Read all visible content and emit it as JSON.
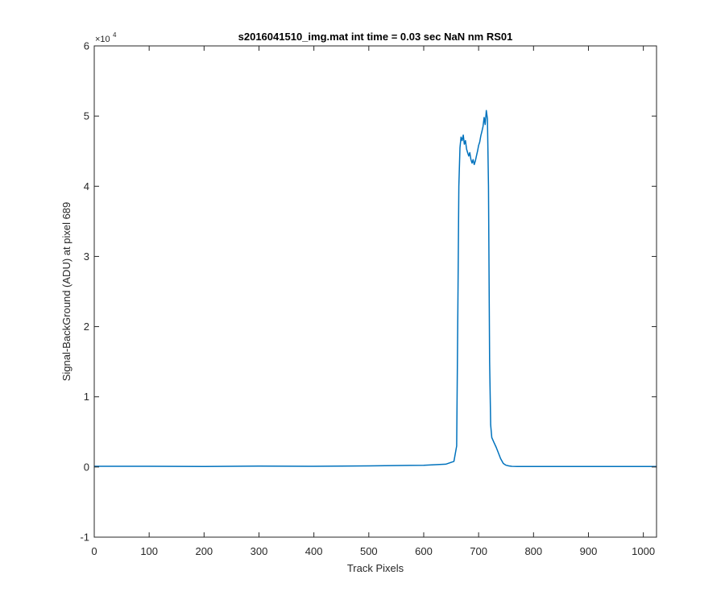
{
  "chart_data": {
    "type": "line",
    "title": "s2016041510_img.mat int time = 0.03 sec  NaN nm RS01",
    "xlabel": "Track Pixels",
    "ylabel": "Signal-BackGround (ADU) at pixel 689",
    "y_exponent_base": "×10",
    "y_exponent_power": "4",
    "xlim": [
      0,
      1024
    ],
    "ylim": [
      -10000,
      60000
    ],
    "x_ticks": [
      "0",
      "100",
      "200",
      "300",
      "400",
      "500",
      "600",
      "700",
      "800",
      "900",
      "1000"
    ],
    "y_ticks": [
      "-1",
      "0",
      "1",
      "2",
      "3",
      "4",
      "5",
      "6"
    ],
    "grid": false,
    "series": [
      {
        "color": "#0072BD",
        "x": [
          0,
          100,
          200,
          300,
          400,
          500,
          600,
          640,
          655,
          660,
          662,
          664,
          666,
          668,
          670,
          672,
          674,
          676,
          678,
          680,
          682,
          684,
          686,
          688,
          690,
          692,
          694,
          696,
          698,
          700,
          702,
          704,
          706,
          708,
          710,
          712,
          714,
          716,
          718,
          720,
          722,
          724,
          728,
          732,
          736,
          740,
          745,
          750,
          755,
          760,
          770,
          800,
          900,
          1000,
          1024
        ],
        "y": [
          100,
          100,
          80,
          120,
          100,
          150,
          250,
          400,
          800,
          3000,
          20000,
          40000,
          45500,
          47000,
          46500,
          47300,
          46000,
          46500,
          45300,
          44800,
          44300,
          44800,
          43800,
          43300,
          43800,
          43100,
          43600,
          44300,
          45000,
          45800,
          46300,
          47200,
          47800,
          48500,
          49800,
          48800,
          50800,
          49600,
          40000,
          15000,
          6000,
          4200,
          3500,
          2800,
          2000,
          1200,
          500,
          250,
          150,
          100,
          80,
          80,
          80,
          80,
          80
        ]
      }
    ]
  }
}
